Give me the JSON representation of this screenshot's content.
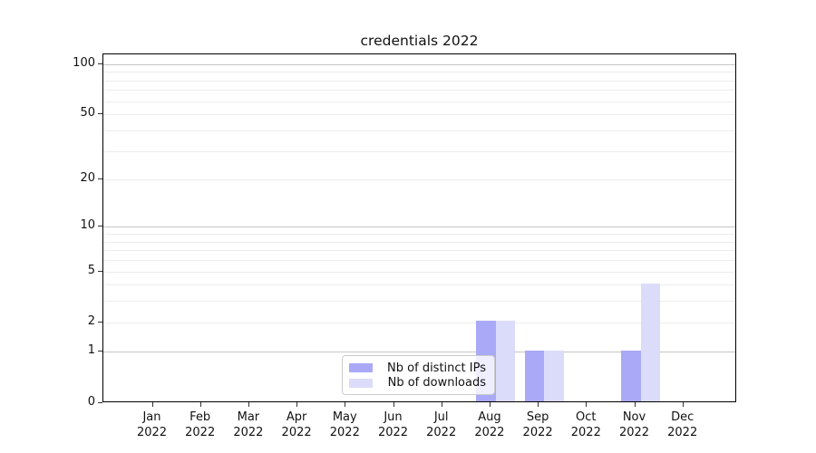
{
  "chart_data": {
    "type": "bar",
    "title": "credentials 2022",
    "categories": [
      "Jan",
      "Feb",
      "Mar",
      "Apr",
      "May",
      "Jun",
      "Jul",
      "Aug",
      "Sep",
      "Oct",
      "Nov",
      "Dec"
    ],
    "year": "2022",
    "series": [
      {
        "name": "Nb of distinct IPs",
        "color": "#a9a9f8",
        "values": [
          0,
          0,
          0,
          0,
          0,
          0,
          0,
          2,
          1,
          0,
          1,
          0
        ]
      },
      {
        "name": "Nb of downloads",
        "color": "#dbdbfa",
        "values": [
          0,
          0,
          0,
          0,
          0,
          0,
          0,
          2,
          1,
          0,
          4,
          0
        ]
      }
    ],
    "y_ticks": [
      0,
      1,
      2,
      5,
      10,
      20,
      50,
      100
    ],
    "y_major_gridlines": [
      1,
      10,
      100
    ],
    "y_minor_gridlines": [
      2,
      3,
      4,
      5,
      6,
      7,
      8,
      9,
      20,
      30,
      40,
      50,
      60,
      70,
      80,
      90
    ],
    "ylim": [
      0,
      115
    ],
    "scale": "log1p",
    "xlabel": "",
    "ylabel": "",
    "grid": "horizontal",
    "legend_position": "lower-center overlay"
  }
}
